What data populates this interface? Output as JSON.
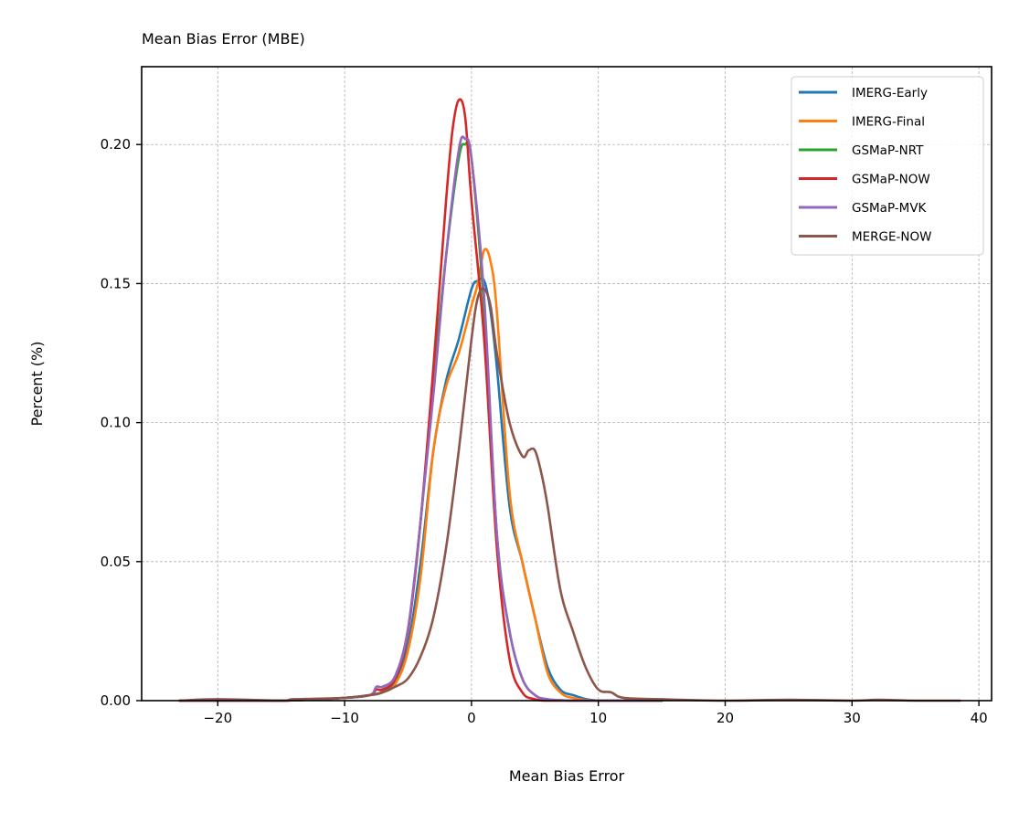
{
  "chart_data": {
    "type": "line",
    "title": "Mean Bias Error (MBE)",
    "xlabel": "Mean Bias Error",
    "ylabel": "Percent (%)",
    "xlim": [
      -26,
      41
    ],
    "ylim": [
      0,
      0.228
    ],
    "xticks": [
      -20,
      -10,
      0,
      10,
      20,
      30,
      40
    ],
    "xtick_labels": [
      "−20",
      "−10",
      "0",
      "10",
      "20",
      "30",
      "40"
    ],
    "yticks": [
      0,
      0.05,
      0.1,
      0.15,
      0.2
    ],
    "ytick_labels": [
      "0.00",
      "0.05",
      "0.10",
      "0.15",
      "0.20"
    ],
    "grid": true,
    "legend_position": "top-right",
    "series": [
      {
        "name": "IMERG-Early",
        "color": "#1f77b4",
        "x": [
          -23,
          -15,
          -10,
          -8,
          -7,
          -6,
          -5,
          -4,
          -3,
          -2,
          -1,
          0,
          0.5,
          1,
          1.5,
          2,
          3,
          4,
          5,
          6,
          7,
          8,
          10,
          15
        ],
        "y": [
          0,
          0,
          0.001,
          0.002,
          0.003,
          0.007,
          0.02,
          0.05,
          0.09,
          0.115,
          0.13,
          0.148,
          0.151,
          0.151,
          0.14,
          0.12,
          0.07,
          0.05,
          0.03,
          0.012,
          0.004,
          0.002,
          0,
          0
        ]
      },
      {
        "name": "IMERG-Final",
        "color": "#ff7f0e",
        "x": [
          -23,
          -15,
          -10,
          -8,
          -7,
          -6,
          -5,
          -4,
          -3,
          -2,
          -1,
          0,
          0.5,
          1,
          1.5,
          2,
          3,
          4,
          5,
          6,
          7,
          8,
          10,
          15
        ],
        "y": [
          0,
          0,
          0.001,
          0.002,
          0.003,
          0.006,
          0.018,
          0.045,
          0.09,
          0.113,
          0.125,
          0.142,
          0.15,
          0.162,
          0.158,
          0.14,
          0.075,
          0.05,
          0.03,
          0.01,
          0.003,
          0.001,
          0,
          0
        ]
      },
      {
        "name": "GSMaP-NRT",
        "color": "#2ca02c",
        "x": [
          -23,
          -15,
          -10,
          -8,
          -7.5,
          -7,
          -6,
          -5,
          -4,
          -3,
          -2,
          -1,
          -0.5,
          0,
          1,
          2,
          3,
          4,
          5,
          6,
          8,
          10,
          15
        ],
        "y": [
          0,
          0,
          0.001,
          0.002,
          0.004,
          0.004,
          0.008,
          0.025,
          0.065,
          0.115,
          0.16,
          0.195,
          0.2,
          0.195,
          0.14,
          0.06,
          0.025,
          0.008,
          0.002,
          0.0005,
          0,
          0,
          0
        ]
      },
      {
        "name": "GSMaP-NOW",
        "color": "#d62728",
        "x": [
          -23,
          -15,
          -10,
          -8,
          -7.5,
          -7,
          -6,
          -5,
          -4,
          -3,
          -2,
          -1.5,
          -1,
          -0.5,
          0,
          1,
          2,
          3,
          4,
          5,
          6,
          8,
          15
        ],
        "y": [
          0,
          0,
          0.001,
          0.002,
          0.004,
          0.004,
          0.008,
          0.025,
          0.065,
          0.12,
          0.18,
          0.205,
          0.216,
          0.21,
          0.18,
          0.13,
          0.055,
          0.015,
          0.003,
          0.0005,
          0,
          0,
          0
        ]
      },
      {
        "name": "GSMaP-MVK",
        "color": "#9467bd",
        "x": [
          -23,
          -15,
          -10,
          -8,
          -7.5,
          -7,
          -6,
          -5,
          -4,
          -3,
          -2,
          -1,
          -0.5,
          0,
          1,
          2,
          3,
          4,
          5,
          6,
          8,
          10,
          15
        ],
        "y": [
          0,
          0,
          0.001,
          0.002,
          0.005,
          0.005,
          0.009,
          0.026,
          0.065,
          0.11,
          0.16,
          0.198,
          0.202,
          0.195,
          0.145,
          0.06,
          0.025,
          0.008,
          0.002,
          0.0005,
          0,
          0,
          0
        ]
      },
      {
        "name": "MERGE-NOW",
        "color": "#8c564b",
        "x": [
          -23,
          -20,
          -15,
          -14,
          -10,
          -8,
          -7,
          -6,
          -5,
          -4,
          -3,
          -2,
          -1,
          0,
          0.5,
          1,
          1.5,
          2,
          3,
          4,
          4.5,
          5,
          5.5,
          6,
          7,
          8,
          9,
          10,
          11,
          12,
          15,
          20,
          25,
          30,
          32,
          35,
          38.5
        ],
        "y": [
          0,
          0.0005,
          0,
          0.0005,
          0.001,
          0.002,
          0.003,
          0.005,
          0.008,
          0.016,
          0.03,
          0.055,
          0.09,
          0.13,
          0.145,
          0.148,
          0.142,
          0.125,
          0.1,
          0.088,
          0.09,
          0.09,
          0.082,
          0.07,
          0.04,
          0.025,
          0.012,
          0.004,
          0.003,
          0.001,
          0.0005,
          0,
          0.0003,
          0,
          0.0003,
          0,
          0
        ]
      }
    ]
  }
}
